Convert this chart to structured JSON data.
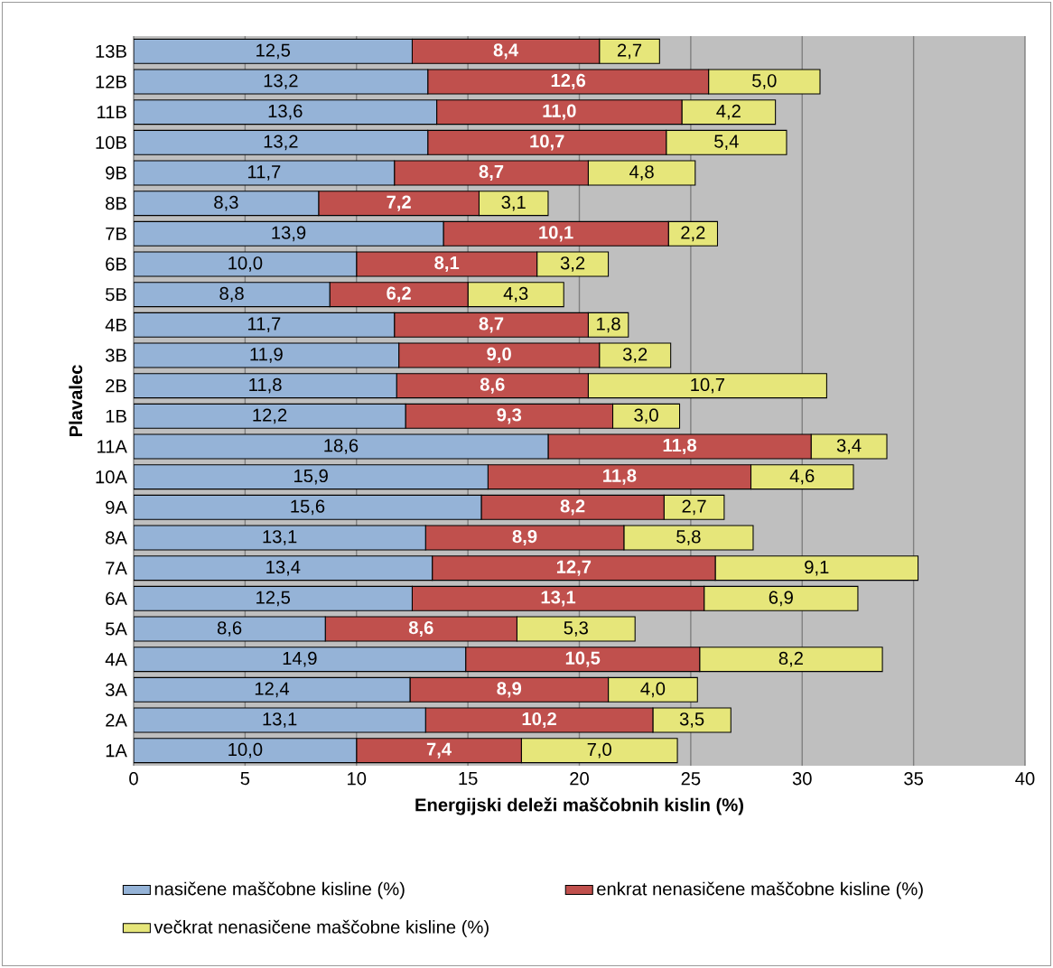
{
  "chart_data": {
    "type": "bar",
    "orientation": "horizontal",
    "stacked": true,
    "xlabel": "Energijski deleži maščobnih kislin (%)",
    "ylabel": "Plavalec",
    "categories": [
      "13B",
      "12B",
      "11B",
      "10B",
      "9B",
      "8B",
      "7B",
      "6B",
      "5B",
      "4B",
      "3B",
      "2B",
      "1B",
      "11A",
      "10A",
      "9A",
      "8A",
      "7A",
      "6A",
      "5A",
      "4A",
      "3A",
      "2A",
      "1A"
    ],
    "xlim": [
      0,
      40
    ],
    "xticks": [
      0,
      5,
      10,
      15,
      20,
      25,
      30,
      35,
      40
    ],
    "grid": "x",
    "legend": "bottom",
    "series": [
      {
        "name": "nasičene maščobne kisline (%)",
        "color": "#95b3d7",
        "values": [
          12.5,
          13.2,
          13.6,
          13.2,
          11.7,
          8.3,
          13.9,
          10.0,
          8.8,
          11.7,
          11.9,
          11.8,
          12.2,
          18.6,
          15.9,
          15.6,
          13.1,
          13.4,
          12.5,
          8.6,
          14.9,
          12.4,
          13.1,
          10.0
        ],
        "value_labels": [
          "12,5",
          "13,2",
          "13,6",
          "13,2",
          "11,7",
          "8,3",
          "13,9",
          "10,0",
          "8,8",
          "11,7",
          "11,9",
          "11,8",
          "12,2",
          "18,6",
          "15,9",
          "15,6",
          "13,1",
          "13,4",
          "12,5",
          "8,6",
          "14,9",
          "12,4",
          "13,1",
          "10,0"
        ]
      },
      {
        "name": "enkrat nenasičene maščobne kisline (%)",
        "color": "#c0504d",
        "values": [
          8.4,
          12.6,
          11.0,
          10.7,
          8.7,
          7.2,
          10.1,
          8.1,
          6.2,
          8.7,
          9.0,
          8.6,
          9.3,
          11.8,
          11.8,
          8.2,
          8.9,
          12.7,
          13.1,
          8.6,
          10.5,
          8.9,
          10.2,
          7.4
        ],
        "value_labels": [
          "8,4",
          "12,6",
          "11,0",
          "10,7",
          "8,7",
          "7,2",
          "10,1",
          "8,1",
          "6,2",
          "8,7",
          "9,0",
          "8,6",
          "9,3",
          "11,8",
          "11,8",
          "8,2",
          "8,9",
          "12,7",
          "13,1",
          "8,6",
          "10,5",
          "8,9",
          "10,2",
          "7,4"
        ]
      },
      {
        "name": "večkrat nenasičene maščobne kisline (%)",
        "color": "#e6e67a",
        "values": [
          2.7,
          5.0,
          4.2,
          5.4,
          4.8,
          3.1,
          2.2,
          3.2,
          4.3,
          1.8,
          3.2,
          10.7,
          3.0,
          3.4,
          4.6,
          2.7,
          5.8,
          9.1,
          6.9,
          5.3,
          8.2,
          4.0,
          3.5,
          7.0
        ],
        "value_labels": [
          "2,7",
          "5,0",
          "4,2",
          "5,4",
          "4,8",
          "3,1",
          "2,2",
          "3,2",
          "4,3",
          "1,8",
          "3,2",
          "10,7",
          "3,0",
          "3,4",
          "4,6",
          "2,7",
          "5,8",
          "9,1",
          "6,9",
          "5,3",
          "8,2",
          "4,0",
          "3,5",
          "7,0"
        ]
      }
    ]
  }
}
